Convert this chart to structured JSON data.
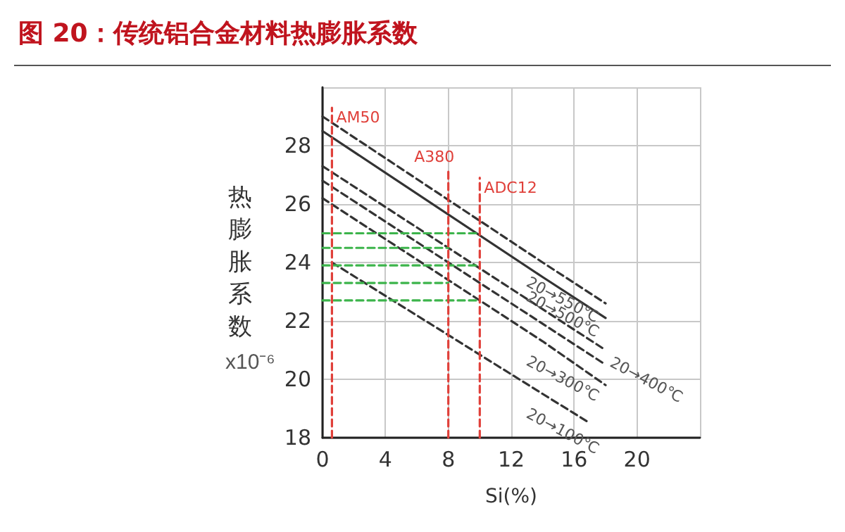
{
  "chart_data": {
    "type": "line",
    "title": "图 20：传统铝合金材料热膨胀系数",
    "xlabel": "Si(%)",
    "ylabel": "热膨胀系数",
    "annotations": [
      "x10⁻⁶"
    ],
    "xlim": [
      0,
      24
    ],
    "xticks": [
      0,
      4,
      8,
      12,
      16,
      20,
      {
        "value": 24,
        "label": null
      }
    ],
    "ylim": [
      18,
      30
    ],
    "yticks": [
      18,
      20,
      22,
      24,
      26,
      28,
      {
        "value": 30,
        "label": null
      }
    ],
    "grid": true,
    "marker": "none",
    "line_style": "dashed",
    "series": [
      {
        "name": "20→550℃",
        "color": "#333333",
        "x": [
          0,
          14,
          18
        ],
        "values": [
          29.0,
          24.0,
          22.6
        ]
      },
      {
        "name": "20→500℃",
        "color": "#333333",
        "line_style": "solid",
        "x": [
          0,
          14,
          18
        ],
        "values": [
          28.5,
          23.5,
          22.1
        ]
      },
      {
        "name": "20→400℃",
        "color": "#333333",
        "x": [
          0,
          18
        ],
        "values": [
          27.3,
          21.0
        ]
      },
      {
        "color": "#333333",
        "x": [
          0,
          18
        ],
        "values": [
          26.8,
          20.5
        ]
      },
      {
        "name": "20→300℃",
        "color": "#333333",
        "x": [
          0,
          14,
          18
        ],
        "values": [
          26.2,
          21.3,
          19.8
        ]
      },
      {
        "name": "20→100℃",
        "color": "#333333",
        "x": [
          0.6,
          14,
          17
        ],
        "values": [
          24.0,
          19.5,
          18.5
        ]
      },
      {
        "name": "AM50",
        "color": "#e0403a",
        "x": [
          0.6,
          0.6
        ],
        "values": [
          18,
          29.3
        ]
      },
      {
        "name": "A380",
        "color": "#e0403a",
        "x": [
          8,
          8
        ],
        "values": [
          18,
          27.2
        ]
      },
      {
        "name": "ADC12",
        "color": "#e0403a",
        "x": [
          10,
          10
        ],
        "values": [
          18,
          26.9
        ]
      },
      {
        "color": "#3cb44b",
        "x": [
          0,
          10
        ],
        "values": [
          25.0,
          25.0
        ]
      },
      {
        "color": "#3cb44b",
        "x": [
          0,
          8
        ],
        "values": [
          24.5,
          24.5
        ]
      },
      {
        "color": "#3cb44b",
        "x": [
          0,
          10
        ],
        "values": [
          23.9,
          23.9
        ]
      },
      {
        "color": "#3cb44b",
        "x": [
          0,
          8
        ],
        "values": [
          23.3,
          23.3
        ]
      },
      {
        "color": "#3cb44b",
        "x": [
          0,
          10
        ],
        "values": [
          22.7,
          22.7
        ]
      }
    ]
  }
}
